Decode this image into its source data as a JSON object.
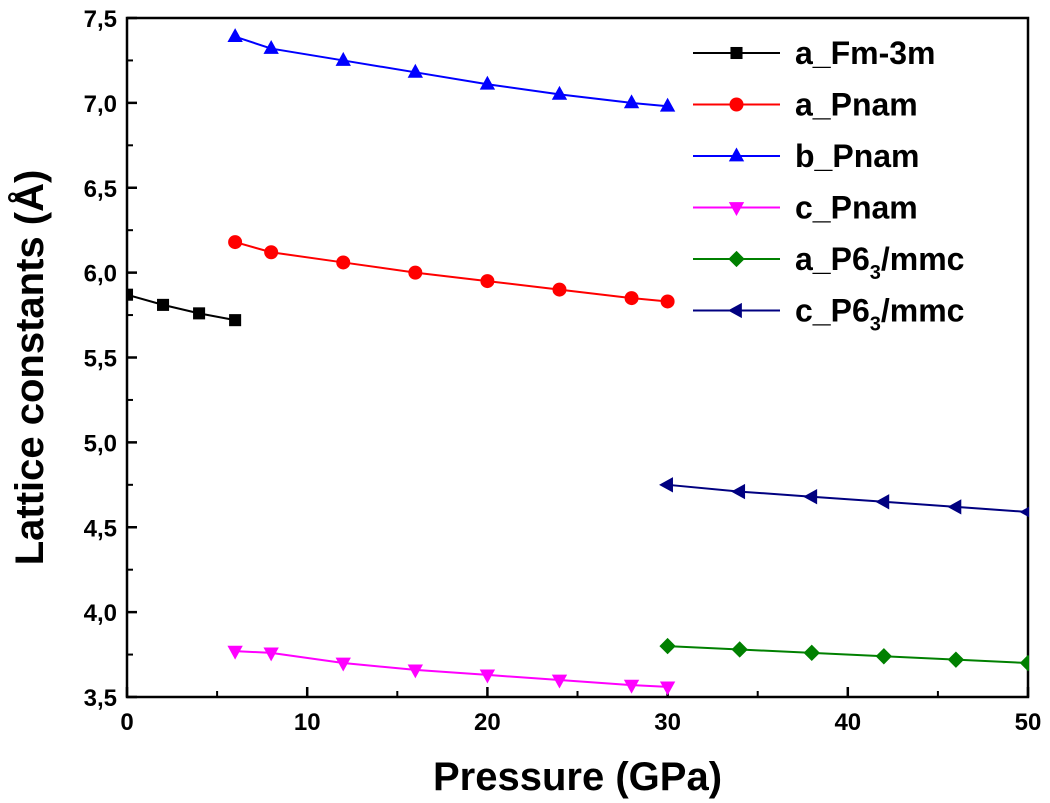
{
  "chart_data": {
    "type": "line",
    "xlabel": "Pressure (GPa)",
    "ylabel": "Lattice constants (Å)",
    "xlim": [
      0,
      50
    ],
    "ylim": [
      3.5,
      7.5
    ],
    "xticks": [
      0,
      10,
      20,
      30,
      40,
      50
    ],
    "yticks": [
      3.5,
      4.0,
      4.5,
      5.0,
      5.5,
      6.0,
      6.5,
      7.0,
      7.5
    ],
    "ytick_labels": [
      "3,5",
      "4,0",
      "4,5",
      "5,0",
      "5,5",
      "6,0",
      "6,5",
      "7,0",
      "7,5"
    ],
    "grid": false,
    "legend_position": "top-right",
    "series": [
      {
        "name": "a_Fm-3m",
        "label_main": "a_Fm-3m",
        "label_sub": "",
        "label_tail": "",
        "color": "#000000",
        "marker": "square",
        "x": [
          0,
          2,
          4,
          6
        ],
        "y": [
          5.87,
          5.81,
          5.76,
          5.72
        ]
      },
      {
        "name": "a_Pnam",
        "label_main": "a_Pnam",
        "label_sub": "",
        "label_tail": "",
        "color": "#ff0000",
        "marker": "circle",
        "x": [
          6,
          8,
          12,
          16,
          20,
          24,
          28,
          30
        ],
        "y": [
          6.18,
          6.12,
          6.06,
          6.0,
          5.95,
          5.9,
          5.85,
          5.83
        ]
      },
      {
        "name": "b_Pnam",
        "label_main": "b_Pnam",
        "label_sub": "",
        "label_tail": "",
        "color": "#0000ff",
        "marker": "triangle-up",
        "x": [
          6,
          8,
          12,
          16,
          20,
          24,
          28,
          30
        ],
        "y": [
          7.39,
          7.32,
          7.25,
          7.18,
          7.11,
          7.05,
          7.0,
          6.98
        ]
      },
      {
        "name": "c_Pnam",
        "label_main": "c_Pnam",
        "label_sub": "",
        "label_tail": "",
        "color": "#ff00ff",
        "marker": "triangle-down",
        "x": [
          6,
          8,
          12,
          16,
          20,
          24,
          28,
          30
        ],
        "y": [
          3.77,
          3.76,
          3.7,
          3.66,
          3.63,
          3.6,
          3.57,
          3.56
        ]
      },
      {
        "name": "a_P6_3/mmc",
        "label_main": "a_P6",
        "label_sub": "3",
        "label_tail": "/mmc",
        "color": "#008000",
        "marker": "diamond",
        "x": [
          30,
          34,
          38,
          42,
          46,
          50
        ],
        "y": [
          3.8,
          3.78,
          3.76,
          3.74,
          3.72,
          3.7
        ]
      },
      {
        "name": "c_P6_3/mmc",
        "label_main": "c_P6",
        "label_sub": "3",
        "label_tail": "/mmc",
        "color": "#000080",
        "marker": "triangle-left",
        "x": [
          30,
          34,
          38,
          42,
          46,
          50
        ],
        "y": [
          4.75,
          4.71,
          4.68,
          4.65,
          4.62,
          4.59
        ]
      }
    ]
  }
}
